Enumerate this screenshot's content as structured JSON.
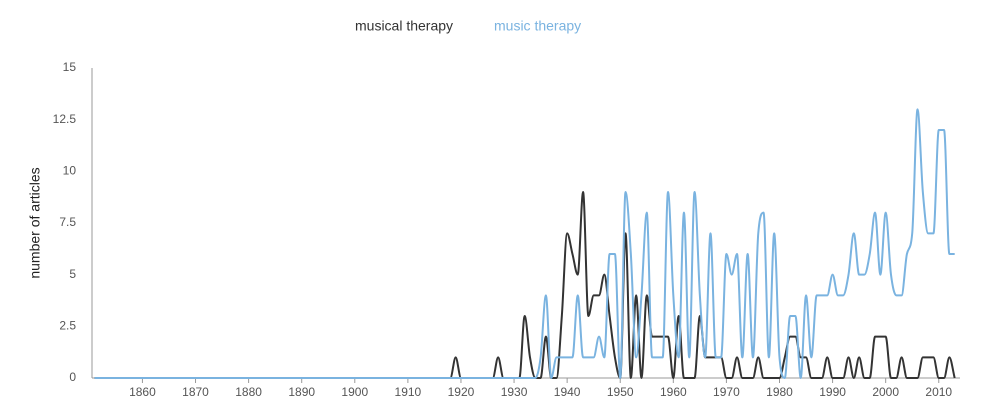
{
  "chart_data": {
    "type": "line",
    "y_label": "number of articles",
    "x": [
      1851,
      1917,
      1918,
      1919,
      1920,
      1921,
      1922,
      1923,
      1924,
      1925,
      1926,
      1927,
      1928,
      1929,
      1930,
      1931,
      1932,
      1933,
      1934,
      1935,
      1936,
      1937,
      1938,
      1939,
      1940,
      1941,
      1942,
      1943,
      1944,
      1945,
      1946,
      1947,
      1948,
      1949,
      1950,
      1951,
      1952,
      1953,
      1954,
      1955,
      1956,
      1957,
      1958,
      1959,
      1960,
      1961,
      1962,
      1963,
      1964,
      1965,
      1966,
      1967,
      1968,
      1969,
      1970,
      1971,
      1972,
      1973,
      1974,
      1975,
      1976,
      1977,
      1978,
      1979,
      1980,
      1981,
      1982,
      1983,
      1984,
      1985,
      1986,
      1987,
      1988,
      1989,
      1990,
      1991,
      1992,
      1993,
      1994,
      1995,
      1996,
      1997,
      1998,
      1999,
      2000,
      2001,
      2002,
      2003,
      2004,
      2005,
      2006,
      2007,
      2008,
      2009,
      2010,
      2011,
      2012,
      2013
    ],
    "series": [
      {
        "name": "musical therapy",
        "color": "#333333",
        "values": [
          0,
          0,
          0,
          1,
          0,
          0,
          0,
          0,
          0,
          0,
          0,
          1,
          0,
          0,
          0,
          0,
          3,
          1,
          0,
          0,
          2,
          0,
          0,
          3,
          7,
          6,
          5,
          9,
          3,
          4,
          4,
          5,
          3,
          1,
          0,
          7,
          0,
          4,
          0,
          4,
          2,
          2,
          2,
          2,
          0,
          3,
          0,
          0,
          0,
          3,
          1,
          1,
          1,
          1,
          0,
          0,
          1,
          0,
          0,
          0,
          1,
          0,
          0,
          0,
          0,
          1,
          2,
          2,
          1,
          1,
          0,
          0,
          0,
          1,
          0,
          0,
          0,
          1,
          0,
          1,
          0,
          0,
          2,
          2,
          2,
          0,
          0,
          1,
          0,
          0,
          0,
          1,
          1,
          1,
          0,
          0,
          1,
          0
        ]
      },
      {
        "name": "music therapy",
        "color": "#7ab3e0",
        "values": [
          0,
          0,
          0,
          0,
          0,
          0,
          0,
          0,
          0,
          0,
          0,
          0,
          0,
          0,
          0,
          0,
          0,
          0,
          0,
          1,
          4,
          0,
          1,
          1,
          1,
          1,
          4,
          1,
          1,
          1,
          2,
          1,
          6,
          6,
          0,
          9,
          6,
          1,
          4,
          8,
          1,
          1,
          1,
          9,
          4,
          1,
          8,
          1,
          9,
          4,
          1,
          7,
          1,
          1,
          6,
          5,
          6,
          1,
          6,
          1,
          7,
          8,
          1,
          7,
          1,
          0,
          3,
          3,
          0,
          4,
          1,
          4,
          4,
          4,
          5,
          4,
          4,
          5,
          7,
          5,
          5,
          6,
          8,
          5,
          8,
          5,
          4,
          4,
          6,
          7,
          13,
          9,
          7,
          7,
          12,
          12,
          6,
          6
        ]
      }
    ],
    "xlim": [
      1850.5,
      2014
    ],
    "xticks": [
      1860,
      1870,
      1880,
      1890,
      1900,
      1910,
      1920,
      1930,
      1940,
      1950,
      1960,
      1970,
      1980,
      1990,
      2000,
      2010
    ],
    "ylim": [
      0,
      15
    ],
    "yticks": [
      0,
      2.5,
      5,
      7.5,
      10,
      12.5,
      15
    ],
    "grid": false
  }
}
